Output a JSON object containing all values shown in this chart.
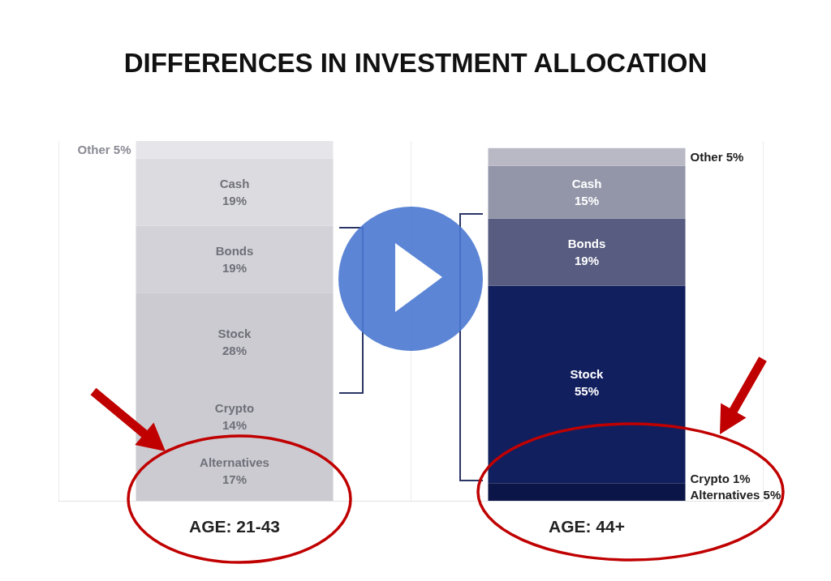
{
  "chart_data": {
    "type": "bar",
    "title": "DIFFERENCES IN INVESTMENT ALLOCATION",
    "categories": [
      "AGE: 21-43",
      "AGE: 44+"
    ],
    "stacked": true,
    "grid": "x",
    "series": [
      {
        "name": "Alternatives",
        "values": [
          17,
          5
        ],
        "colors": [
          "#cbcbd1",
          "#0b1547"
        ],
        "value_labels": [
          "17%",
          "5%"
        ]
      },
      {
        "name": "Crypto",
        "values": [
          14,
          1
        ],
        "colors": [
          "#cbcbd1",
          "#121f5f"
        ],
        "value_labels": [
          "14%",
          "1%"
        ]
      },
      {
        "name": "Stock",
        "values": [
          28,
          55
        ],
        "colors": [
          "#cbcbd1",
          "#121f5f"
        ],
        "value_labels": [
          "28%",
          "55%"
        ]
      },
      {
        "name": "Bonds",
        "values": [
          19,
          19
        ],
        "colors": [
          "#d2d2d8",
          "#575c80"
        ],
        "value_labels": [
          "19%",
          "19%"
        ]
      },
      {
        "name": "Cash",
        "values": [
          19,
          15
        ],
        "colors": [
          "#dcdce0",
          "#9396a9"
        ],
        "value_labels": [
          "19%",
          "15%"
        ]
      },
      {
        "name": "Other",
        "values": [
          5,
          5
        ],
        "colors": [
          "#e6e6ea",
          "#b9b9c6"
        ],
        "value_labels": [
          "5%",
          "5%"
        ]
      }
    ]
  }
}
